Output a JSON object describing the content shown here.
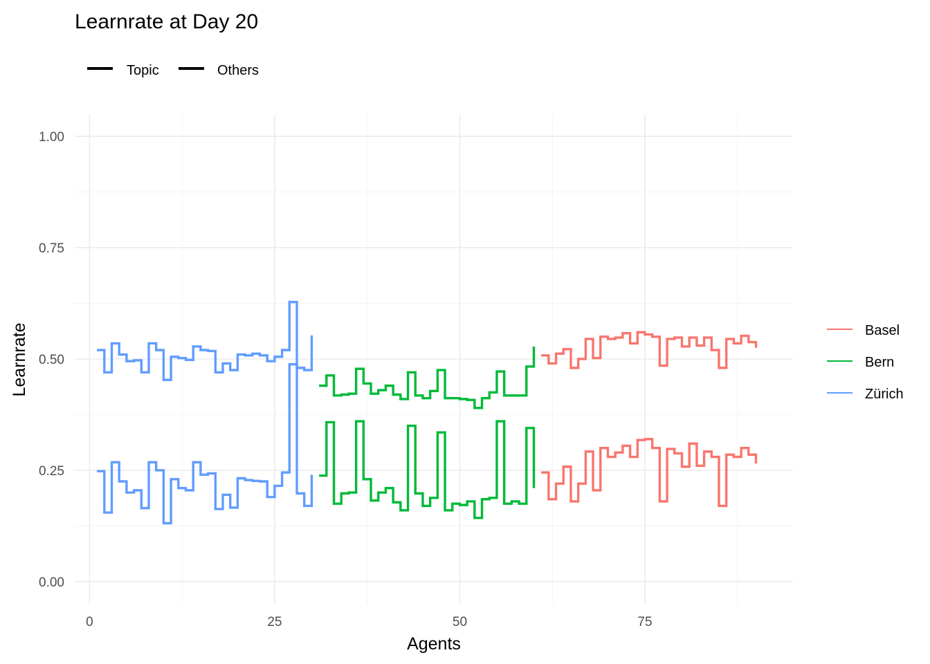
{
  "chart_data": {
    "type": "line",
    "title": "Learnrate at Day 20",
    "xlabel": "Agents",
    "ylabel": "Learnrate",
    "xlim": [
      -2,
      95
    ],
    "ylim": [
      -0.05,
      1.05
    ],
    "x_ticks": [
      0,
      25,
      50,
      75
    ],
    "x_tick_labels": [
      "0",
      "25",
      "50",
      "75"
    ],
    "y_ticks": [
      0,
      0.25,
      0.5,
      0.75,
      1.0
    ],
    "y_tick_labels": [
      "0.00",
      "0.25",
      "0.50",
      "0.75",
      "1.00"
    ],
    "grid": true,
    "step": true,
    "linetype_legend": {
      "position": "top-left",
      "entries": [
        "Topic",
        "Others"
      ]
    },
    "color_legend": {
      "position": "right",
      "entries": [
        {
          "name": "Basel",
          "color": "#F8766D"
        },
        {
          "name": "Bern",
          "color": "#00BA38"
        },
        {
          "name": "Zürich",
          "color": "#619CFF"
        }
      ]
    },
    "series": [
      {
        "city": "Zürich",
        "linetype": "Topic",
        "color": "#619CFF",
        "x": [
          1,
          2,
          3,
          4,
          5,
          6,
          7,
          8,
          9,
          10,
          11,
          12,
          13,
          14,
          15,
          16,
          17,
          18,
          19,
          20,
          21,
          22,
          23,
          24,
          25,
          26,
          27,
          28,
          29,
          30
        ],
        "values": [
          0.52,
          0.47,
          0.535,
          0.51,
          0.495,
          0.497,
          0.47,
          0.535,
          0.52,
          0.453,
          0.505,
          0.502,
          0.498,
          0.528,
          0.52,
          0.518,
          0.47,
          0.49,
          0.475,
          0.51,
          0.508,
          0.512,
          0.508,
          0.495,
          0.505,
          0.52,
          0.628,
          0.48,
          0.475,
          0.553
        ]
      },
      {
        "city": "Zürich",
        "linetype": "Others",
        "color": "#619CFF",
        "x": [
          1,
          2,
          3,
          4,
          5,
          6,
          7,
          8,
          9,
          10,
          11,
          12,
          13,
          14,
          15,
          16,
          17,
          18,
          19,
          20,
          21,
          22,
          23,
          24,
          25,
          26,
          27,
          28,
          29,
          30
        ],
        "values": [
          0.248,
          0.155,
          0.268,
          0.225,
          0.2,
          0.205,
          0.165,
          0.268,
          0.25,
          0.131,
          0.23,
          0.21,
          0.205,
          0.268,
          0.24,
          0.243,
          0.163,
          0.195,
          0.166,
          0.232,
          0.228,
          0.226,
          0.225,
          0.19,
          0.215,
          0.245,
          0.488,
          0.198,
          0.17,
          0.24
        ]
      },
      {
        "city": "Bern",
        "linetype": "Topic",
        "color": "#00BA38",
        "x": [
          31,
          32,
          33,
          34,
          35,
          36,
          37,
          38,
          39,
          40,
          41,
          42,
          43,
          44,
          45,
          46,
          47,
          48,
          49,
          50,
          51,
          52,
          53,
          54,
          55,
          56,
          57,
          58,
          59,
          60
        ],
        "values": [
          0.44,
          0.463,
          0.418,
          0.42,
          0.422,
          0.478,
          0.445,
          0.422,
          0.43,
          0.44,
          0.42,
          0.41,
          0.47,
          0.418,
          0.412,
          0.428,
          0.475,
          0.412,
          0.412,
          0.41,
          0.408,
          0.39,
          0.412,
          0.425,
          0.472,
          0.418,
          0.418,
          0.418,
          0.483,
          0.528
        ]
      },
      {
        "city": "Bern",
        "linetype": "Others",
        "color": "#00BA38",
        "x": [
          31,
          32,
          33,
          34,
          35,
          36,
          37,
          38,
          39,
          40,
          41,
          42,
          43,
          44,
          45,
          46,
          47,
          48,
          49,
          50,
          51,
          52,
          53,
          54,
          55,
          56,
          57,
          58,
          59,
          60
        ],
        "values": [
          0.238,
          0.358,
          0.175,
          0.198,
          0.2,
          0.36,
          0.23,
          0.182,
          0.2,
          0.21,
          0.178,
          0.16,
          0.35,
          0.198,
          0.17,
          0.188,
          0.335,
          0.16,
          0.175,
          0.172,
          0.18,
          0.143,
          0.185,
          0.188,
          0.36,
          0.175,
          0.18,
          0.175,
          0.345,
          0.21
        ]
      },
      {
        "city": "Basel",
        "linetype": "Topic",
        "color": "#F8766D",
        "x": [
          61,
          62,
          63,
          64,
          65,
          66,
          67,
          68,
          69,
          70,
          71,
          72,
          73,
          74,
          75,
          76,
          77,
          78,
          79,
          80,
          81,
          82,
          83,
          84,
          85,
          86,
          87,
          88,
          89,
          90
        ],
        "values": [
          0.508,
          0.49,
          0.512,
          0.522,
          0.48,
          0.5,
          0.545,
          0.502,
          0.55,
          0.545,
          0.548,
          0.558,
          0.535,
          0.56,
          0.555,
          0.55,
          0.485,
          0.545,
          0.548,
          0.528,
          0.548,
          0.53,
          0.548,
          0.52,
          0.48,
          0.545,
          0.535,
          0.552,
          0.538,
          0.525
        ]
      },
      {
        "city": "Basel",
        "linetype": "Others",
        "color": "#F8766D",
        "x": [
          61,
          62,
          63,
          64,
          65,
          66,
          67,
          68,
          69,
          70,
          71,
          72,
          73,
          74,
          75,
          76,
          77,
          78,
          79,
          80,
          81,
          82,
          83,
          84,
          85,
          86,
          87,
          88,
          89,
          90
        ],
        "values": [
          0.245,
          0.185,
          0.22,
          0.258,
          0.18,
          0.22,
          0.292,
          0.205,
          0.3,
          0.28,
          0.29,
          0.305,
          0.28,
          0.318,
          0.32,
          0.3,
          0.18,
          0.298,
          0.288,
          0.258,
          0.31,
          0.26,
          0.292,
          0.28,
          0.17,
          0.285,
          0.28,
          0.3,
          0.285,
          0.265
        ]
      }
    ]
  }
}
